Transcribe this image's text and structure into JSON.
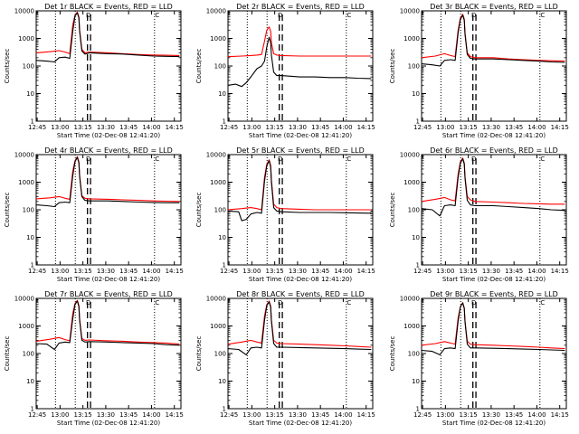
{
  "figure": {
    "panel_title_template": "Det {id} BLACK = Events, RED = LLD",
    "xlabel": "Start Time (02-Dec-08 12:41:20)",
    "ylabel": "Counts/sec",
    "x_tick_labels": [
      "12:45",
      "13:00",
      "13:15",
      "13:30",
      "13:45",
      "14:00",
      "14:15"
    ],
    "y_tick_labels": [
      "1",
      "10",
      "100",
      "1000",
      "10000"
    ],
    "series_colors": {
      "events": "#000000",
      "lld": "#ff0000"
    },
    "marker_symbols": [
      "D",
      "C"
    ]
  },
  "chart_data": [
    {
      "type": "line",
      "detector": "1r",
      "title": "Det 1r BLACK = Events, RED = LLD",
      "xlabel": "Start Time (02-Dec-08 12:41:20)",
      "ylabel": "Counts/sec",
      "x_unit": "minutes after 12:41:20",
      "xlim": [
        3,
        98
      ],
      "ylim": [
        1,
        10000
      ],
      "y_scale": "log",
      "dotted_verticals": [
        "12:57",
        "13:10",
        "14:02"
      ],
      "dashed_verticals": [
        "13:18",
        "13:20"
      ],
      "series": [
        {
          "name": "LLD",
          "color": "#ff0000",
          "x": [
            3,
            12,
            18,
            22,
            25,
            27,
            28.5,
            30,
            31,
            31.5,
            33,
            35,
            38,
            50,
            60,
            70,
            80,
            88,
            97
          ],
          "values": [
            300,
            330,
            360,
            320,
            280,
            3000,
            7000,
            9000,
            6000,
            2000,
            400,
            300,
            320,
            300,
            280,
            260,
            250,
            245,
            240
          ]
        },
        {
          "name": "Events",
          "color": "#000000",
          "x": [
            3,
            10,
            15,
            18,
            22,
            25,
            27,
            28.5,
            30,
            31,
            31.5,
            33,
            35,
            38,
            50,
            60,
            70,
            80,
            88,
            97
          ],
          "values": [
            160,
            150,
            140,
            200,
            210,
            190,
            1800,
            6500,
            8500,
            5500,
            1800,
            350,
            270,
            300,
            280,
            270,
            250,
            230,
            225,
            220
          ]
        }
      ]
    },
    {
      "type": "line",
      "detector": "2r",
      "title": "Det 2r BLACK = Events, RED = LLD",
      "xlabel": "Start Time (02-Dec-08 12:41:20)",
      "ylabel": "Counts/sec",
      "x_unit": "minutes after 12:41:20",
      "xlim": [
        3,
        98
      ],
      "ylim": [
        1,
        10000
      ],
      "y_scale": "log",
      "dotted_verticals": [
        "12:57",
        "13:10",
        "14:02"
      ],
      "dashed_verticals": [
        "13:18",
        "13:20"
      ],
      "series": [
        {
          "name": "LLD",
          "color": "#ff0000",
          "x": [
            3,
            12,
            18,
            22,
            25,
            27,
            28.5,
            30,
            31,
            31.5,
            33,
            35,
            38,
            50,
            60,
            70,
            80,
            88,
            97
          ],
          "values": [
            220,
            230,
            240,
            250,
            260,
            800,
            2000,
            2600,
            1800,
            700,
            280,
            250,
            240,
            230,
            230,
            230,
            230,
            230,
            230
          ]
        },
        {
          "name": "Events",
          "color": "#000000",
          "x": [
            3,
            8,
            12,
            15,
            18,
            22,
            25,
            27,
            28.5,
            30,
            31,
            31.5,
            33,
            35,
            38,
            50,
            60,
            70,
            80,
            88,
            97
          ],
          "values": [
            20,
            22,
            18,
            25,
            40,
            80,
            100,
            150,
            500,
            1100,
            700,
            250,
            60,
            45,
            45,
            40,
            40,
            38,
            38,
            36,
            35
          ]
        }
      ]
    },
    {
      "type": "line",
      "detector": "3r",
      "title": "Det 3r BLACK = Events, RED = LLD",
      "xlabel": "Start Time (02-Dec-08 12:41:20)",
      "ylabel": "Counts/sec",
      "x_unit": "minutes after 12:41:20",
      "xlim": [
        3,
        98
      ],
      "ylim": [
        1,
        10000
      ],
      "y_scale": "log",
      "dotted_verticals": [
        "12:57",
        "13:10",
        "14:02"
      ],
      "dashed_verticals": [
        "13:18",
        "13:20"
      ],
      "series": [
        {
          "name": "LLD",
          "color": "#ff0000",
          "x": [
            3,
            12,
            18,
            22,
            25,
            27,
            28.5,
            30,
            31,
            31.5,
            33,
            35,
            38,
            50,
            60,
            70,
            80,
            88,
            97
          ],
          "values": [
            200,
            230,
            280,
            240,
            220,
            2000,
            5500,
            7500,
            5000,
            1600,
            300,
            220,
            200,
            200,
            180,
            170,
            160,
            155,
            150
          ]
        },
        {
          "name": "Events",
          "color": "#000000",
          "x": [
            3,
            10,
            15,
            18,
            22,
            25,
            27,
            28.5,
            30,
            31,
            31.5,
            33,
            35,
            38,
            50,
            60,
            70,
            80,
            88,
            97
          ],
          "values": [
            120,
            110,
            100,
            160,
            170,
            160,
            1600,
            5000,
            7000,
            4500,
            1400,
            260,
            190,
            180,
            180,
            170,
            160,
            150,
            140,
            135
          ]
        }
      ]
    },
    {
      "type": "line",
      "detector": "4r",
      "title": "Det 4r BLACK = Events, RED = LLD",
      "xlabel": "Start Time (02-Dec-08 12:41:20)",
      "ylabel": "Counts/sec",
      "x_unit": "minutes after 12:41:20",
      "xlim": [
        3,
        98
      ],
      "ylim": [
        1,
        10000
      ],
      "y_scale": "log",
      "dotted_verticals": [
        "12:57",
        "13:10",
        "14:02"
      ],
      "dashed_verticals": [
        "13:18",
        "13:20"
      ],
      "series": [
        {
          "name": "LLD",
          "color": "#ff0000",
          "x": [
            3,
            12,
            18,
            22,
            25,
            27,
            28.5,
            30,
            31,
            31.5,
            33,
            35,
            38,
            50,
            60,
            70,
            80,
            88,
            97
          ],
          "values": [
            250,
            270,
            300,
            260,
            240,
            2500,
            6000,
            8500,
            5500,
            1800,
            320,
            260,
            250,
            240,
            230,
            220,
            210,
            205,
            200
          ]
        },
        {
          "name": "Events",
          "color": "#000000",
          "x": [
            3,
            10,
            15,
            18,
            22,
            25,
            27,
            28.5,
            30,
            31,
            31.5,
            33,
            35,
            38,
            50,
            60,
            70,
            80,
            88,
            97
          ],
          "values": [
            150,
            140,
            130,
            180,
            190,
            180,
            1700,
            5500,
            8000,
            5000,
            1600,
            300,
            220,
            210,
            210,
            200,
            190,
            185,
            180,
            180
          ]
        }
      ]
    },
    {
      "type": "line",
      "detector": "5r",
      "title": "Det 5r BLACK = Events, RED = LLD",
      "xlabel": "Start Time (02-Dec-08 12:41:20)",
      "ylabel": "Counts/sec",
      "x_unit": "minutes after 12:41:20",
      "xlim": [
        3,
        98
      ],
      "ylim": [
        1,
        10000
      ],
      "y_scale": "log",
      "dotted_verticals": [
        "12:57",
        "13:10",
        "14:02"
      ],
      "dashed_verticals": [
        "13:18",
        "13:20"
      ],
      "series": [
        {
          "name": "LLD",
          "color": "#ff0000",
          "x": [
            3,
            12,
            18,
            22,
            25,
            27,
            28.5,
            30,
            31,
            31.5,
            33,
            35,
            38,
            50,
            60,
            70,
            80,
            88,
            97
          ],
          "values": [
            100,
            110,
            120,
            110,
            100,
            1500,
            4500,
            6500,
            4000,
            1200,
            160,
            120,
            110,
            105,
            100,
            100,
            100,
            100,
            100
          ]
        },
        {
          "name": "Events",
          "color": "#000000",
          "x": [
            3,
            10,
            12,
            15,
            18,
            22,
            25,
            27,
            28.5,
            30,
            31,
            31.5,
            33,
            35,
            38,
            50,
            60,
            70,
            80,
            88,
            97
          ],
          "values": [
            90,
            85,
            40,
            45,
            70,
            80,
            75,
            1100,
            4000,
            6000,
            3500,
            1000,
            120,
            90,
            85,
            80,
            80,
            80,
            78,
            76,
            75
          ]
        }
      ]
    },
    {
      "type": "line",
      "detector": "6r",
      "title": "Det 6r BLACK = Events, RED = LLD",
      "xlabel": "Start Time (02-Dec-08 12:41:20)",
      "ylabel": "Counts/sec",
      "x_unit": "minutes after 12:41:20",
      "xlim": [
        3,
        98
      ],
      "ylim": [
        1,
        10000
      ],
      "y_scale": "log",
      "dotted_verticals": [
        "12:57",
        "13:10",
        "14:02"
      ],
      "dashed_verticals": [
        "13:18",
        "13:20"
      ],
      "series": [
        {
          "name": "LLD",
          "color": "#ff0000",
          "x": [
            3,
            12,
            18,
            22,
            25,
            27,
            28.5,
            30,
            31,
            31.5,
            33,
            35,
            38,
            50,
            60,
            70,
            80,
            88,
            97
          ],
          "values": [
            200,
            240,
            280,
            230,
            210,
            2000,
            5500,
            7500,
            5000,
            1600,
            300,
            230,
            200,
            190,
            180,
            170,
            165,
            160,
            160
          ]
        },
        {
          "name": "Events",
          "color": "#000000",
          "x": [
            3,
            10,
            15,
            18,
            22,
            25,
            27,
            28.5,
            30,
            31,
            31.5,
            33,
            35,
            38,
            50,
            60,
            70,
            80,
            88,
            97
          ],
          "values": [
            110,
            100,
            60,
            140,
            150,
            140,
            1500,
            5000,
            7000,
            4500,
            1400,
            220,
            150,
            140,
            140,
            130,
            120,
            110,
            100,
            95
          ]
        }
      ]
    },
    {
      "type": "line",
      "detector": "7r",
      "title": "Det 7r BLACK = Events, RED = LLD",
      "xlabel": "Start Time (02-Dec-08 12:41:20)",
      "ylabel": "Counts/sec",
      "x_unit": "minutes after 12:41:20",
      "xlim": [
        3,
        98
      ],
      "ylim": [
        1,
        10000
      ],
      "y_scale": "log",
      "dotted_verticals": [
        "12:57",
        "13:10",
        "14:02"
      ],
      "dashed_verticals": [
        "13:18",
        "13:20"
      ],
      "series": [
        {
          "name": "LLD",
          "color": "#ff0000",
          "x": [
            3,
            12,
            18,
            22,
            25,
            27,
            28.5,
            30,
            31,
            31.5,
            33,
            35,
            38,
            50,
            60,
            70,
            80,
            88,
            97
          ],
          "values": [
            280,
            330,
            380,
            320,
            290,
            2800,
            6500,
            8500,
            5500,
            1800,
            350,
            300,
            310,
            290,
            280,
            260,
            250,
            240,
            220
          ]
        },
        {
          "name": "Events",
          "color": "#000000",
          "x": [
            3,
            10,
            15,
            18,
            22,
            25,
            27,
            28.5,
            30,
            31,
            31.5,
            33,
            35,
            38,
            50,
            60,
            70,
            80,
            88,
            97
          ],
          "values": [
            230,
            220,
            140,
            240,
            260,
            250,
            1800,
            6000,
            8000,
            5000,
            1600,
            300,
            260,
            270,
            260,
            250,
            240,
            230,
            210,
            200
          ]
        }
      ]
    },
    {
      "type": "line",
      "detector": "8r",
      "title": "Det 8r BLACK = Events, RED = LLD",
      "xlabel": "Start Time (02-Dec-08 12:41:20)",
      "ylabel": "Counts/sec",
      "x_unit": "minutes after 12:41:20",
      "xlim": [
        3,
        98
      ],
      "ylim": [
        1,
        10000
      ],
      "y_scale": "log",
      "dotted_verticals": [
        "12:57",
        "13:10",
        "14:02"
      ],
      "dashed_verticals": [
        "13:18",
        "13:20"
      ],
      "series": [
        {
          "name": "LLD",
          "color": "#ff0000",
          "x": [
            3,
            12,
            18,
            22,
            25,
            27,
            28.5,
            30,
            31,
            31.5,
            33,
            35,
            38,
            50,
            60,
            70,
            80,
            88,
            97
          ],
          "values": [
            220,
            260,
            300,
            260,
            240,
            2300,
            6000,
            8000,
            5200,
            1700,
            300,
            240,
            230,
            220,
            210,
            200,
            190,
            180,
            170
          ]
        },
        {
          "name": "Events",
          "color": "#000000",
          "x": [
            3,
            10,
            15,
            18,
            22,
            25,
            27,
            28.5,
            30,
            31,
            31.5,
            33,
            35,
            38,
            50,
            60,
            70,
            80,
            88,
            97
          ],
          "values": [
            150,
            140,
            90,
            160,
            170,
            160,
            1600,
            5500,
            7500,
            4800,
            1500,
            230,
            170,
            170,
            165,
            160,
            155,
            150,
            145,
            140
          ]
        }
      ]
    },
    {
      "type": "line",
      "detector": "9r",
      "title": "Det 9r BLACK = Events, RED = LLD",
      "xlabel": "Start Time (02-Dec-08 12:41:20)",
      "ylabel": "Counts/sec",
      "x_unit": "minutes after 12:41:20",
      "xlim": [
        3,
        98
      ],
      "ylim": [
        1,
        10000
      ],
      "y_scale": "log",
      "dotted_verticals": [
        "12:57",
        "13:10",
        "14:02"
      ],
      "dashed_verticals": [
        "13:18",
        "13:20"
      ],
      "series": [
        {
          "name": "LLD",
          "color": "#ff0000",
          "x": [
            3,
            12,
            18,
            22,
            25,
            27,
            28.5,
            30,
            31,
            31.5,
            33,
            35,
            38,
            50,
            60,
            70,
            80,
            88,
            97
          ],
          "values": [
            200,
            230,
            270,
            240,
            220,
            2000,
            5000,
            7000,
            4500,
            1500,
            280,
            220,
            210,
            200,
            190,
            180,
            170,
            160,
            150
          ]
        },
        {
          "name": "Events",
          "color": "#000000",
          "x": [
            3,
            10,
            15,
            18,
            22,
            25,
            27,
            28.5,
            30,
            31,
            31.5,
            33,
            35,
            38,
            50,
            60,
            70,
            80,
            88,
            97
          ],
          "values": [
            130,
            120,
            90,
            150,
            160,
            150,
            1500,
            5000,
            6800,
            4300,
            1400,
            220,
            160,
            160,
            155,
            150,
            145,
            140,
            135,
            130
          ]
        }
      ]
    }
  ]
}
